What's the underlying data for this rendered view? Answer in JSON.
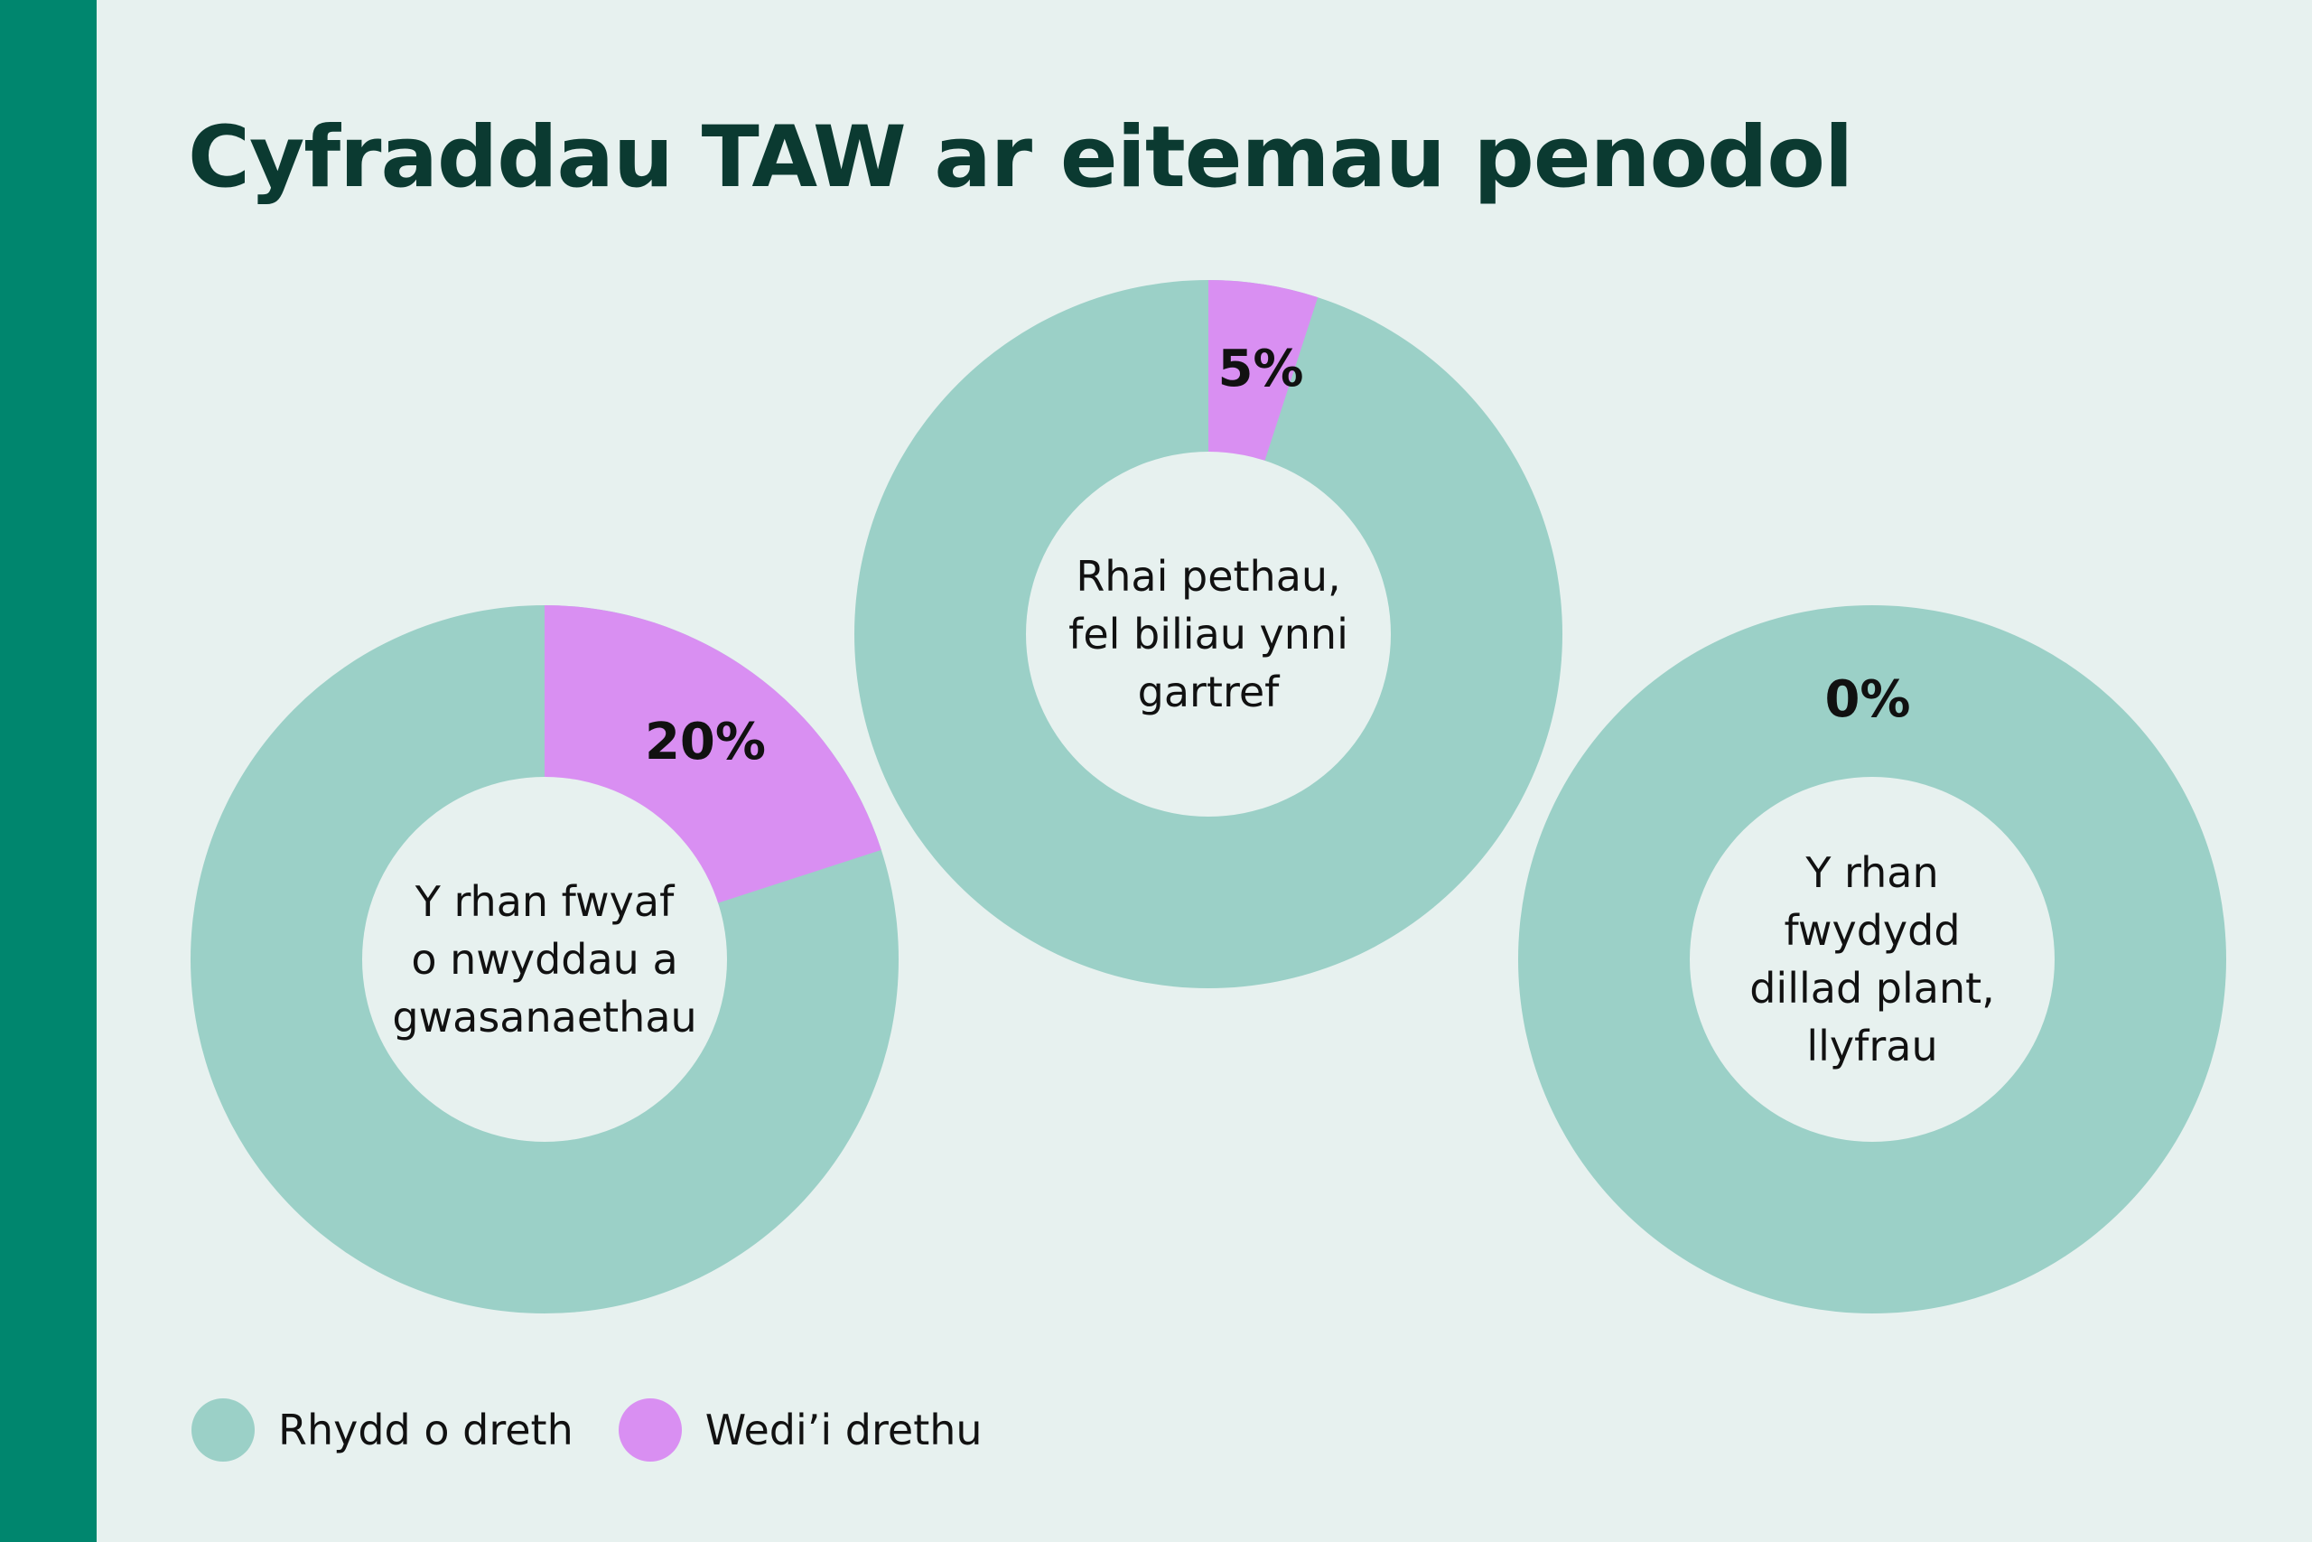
{
  "chart_data": {
    "type": "pie",
    "title": "Cyfraddau TAW ar eitemau penodol",
    "legend": {
      "placement": "bottom-left",
      "entries": [
        {
          "name": "Rhydd o dreth",
          "color": "#9bd0c7"
        },
        {
          "name": "Wedi’i drethu",
          "color": "#d98ff2"
        }
      ]
    },
    "charts": [
      {
        "rate_percent": 20,
        "rate_label": "20%",
        "center_text": "Y rhan fwyaf\no nwyddau a\ngwasanaethau"
      },
      {
        "rate_percent": 5,
        "rate_label": "5%",
        "center_text": "Rhai pethau,\nfel biliau ynni\ngartref"
      },
      {
        "rate_percent": 0,
        "rate_label": "0%",
        "center_text": "Y rhan\nfwydydd\ndillad plant,\nllyfrau"
      }
    ]
  },
  "colors": {
    "sidebar": "#00866e",
    "background": "#e7f1ef",
    "title": "#0b3a31",
    "untaxed": "#9bd0c7",
    "taxed": "#d98ff2"
  }
}
